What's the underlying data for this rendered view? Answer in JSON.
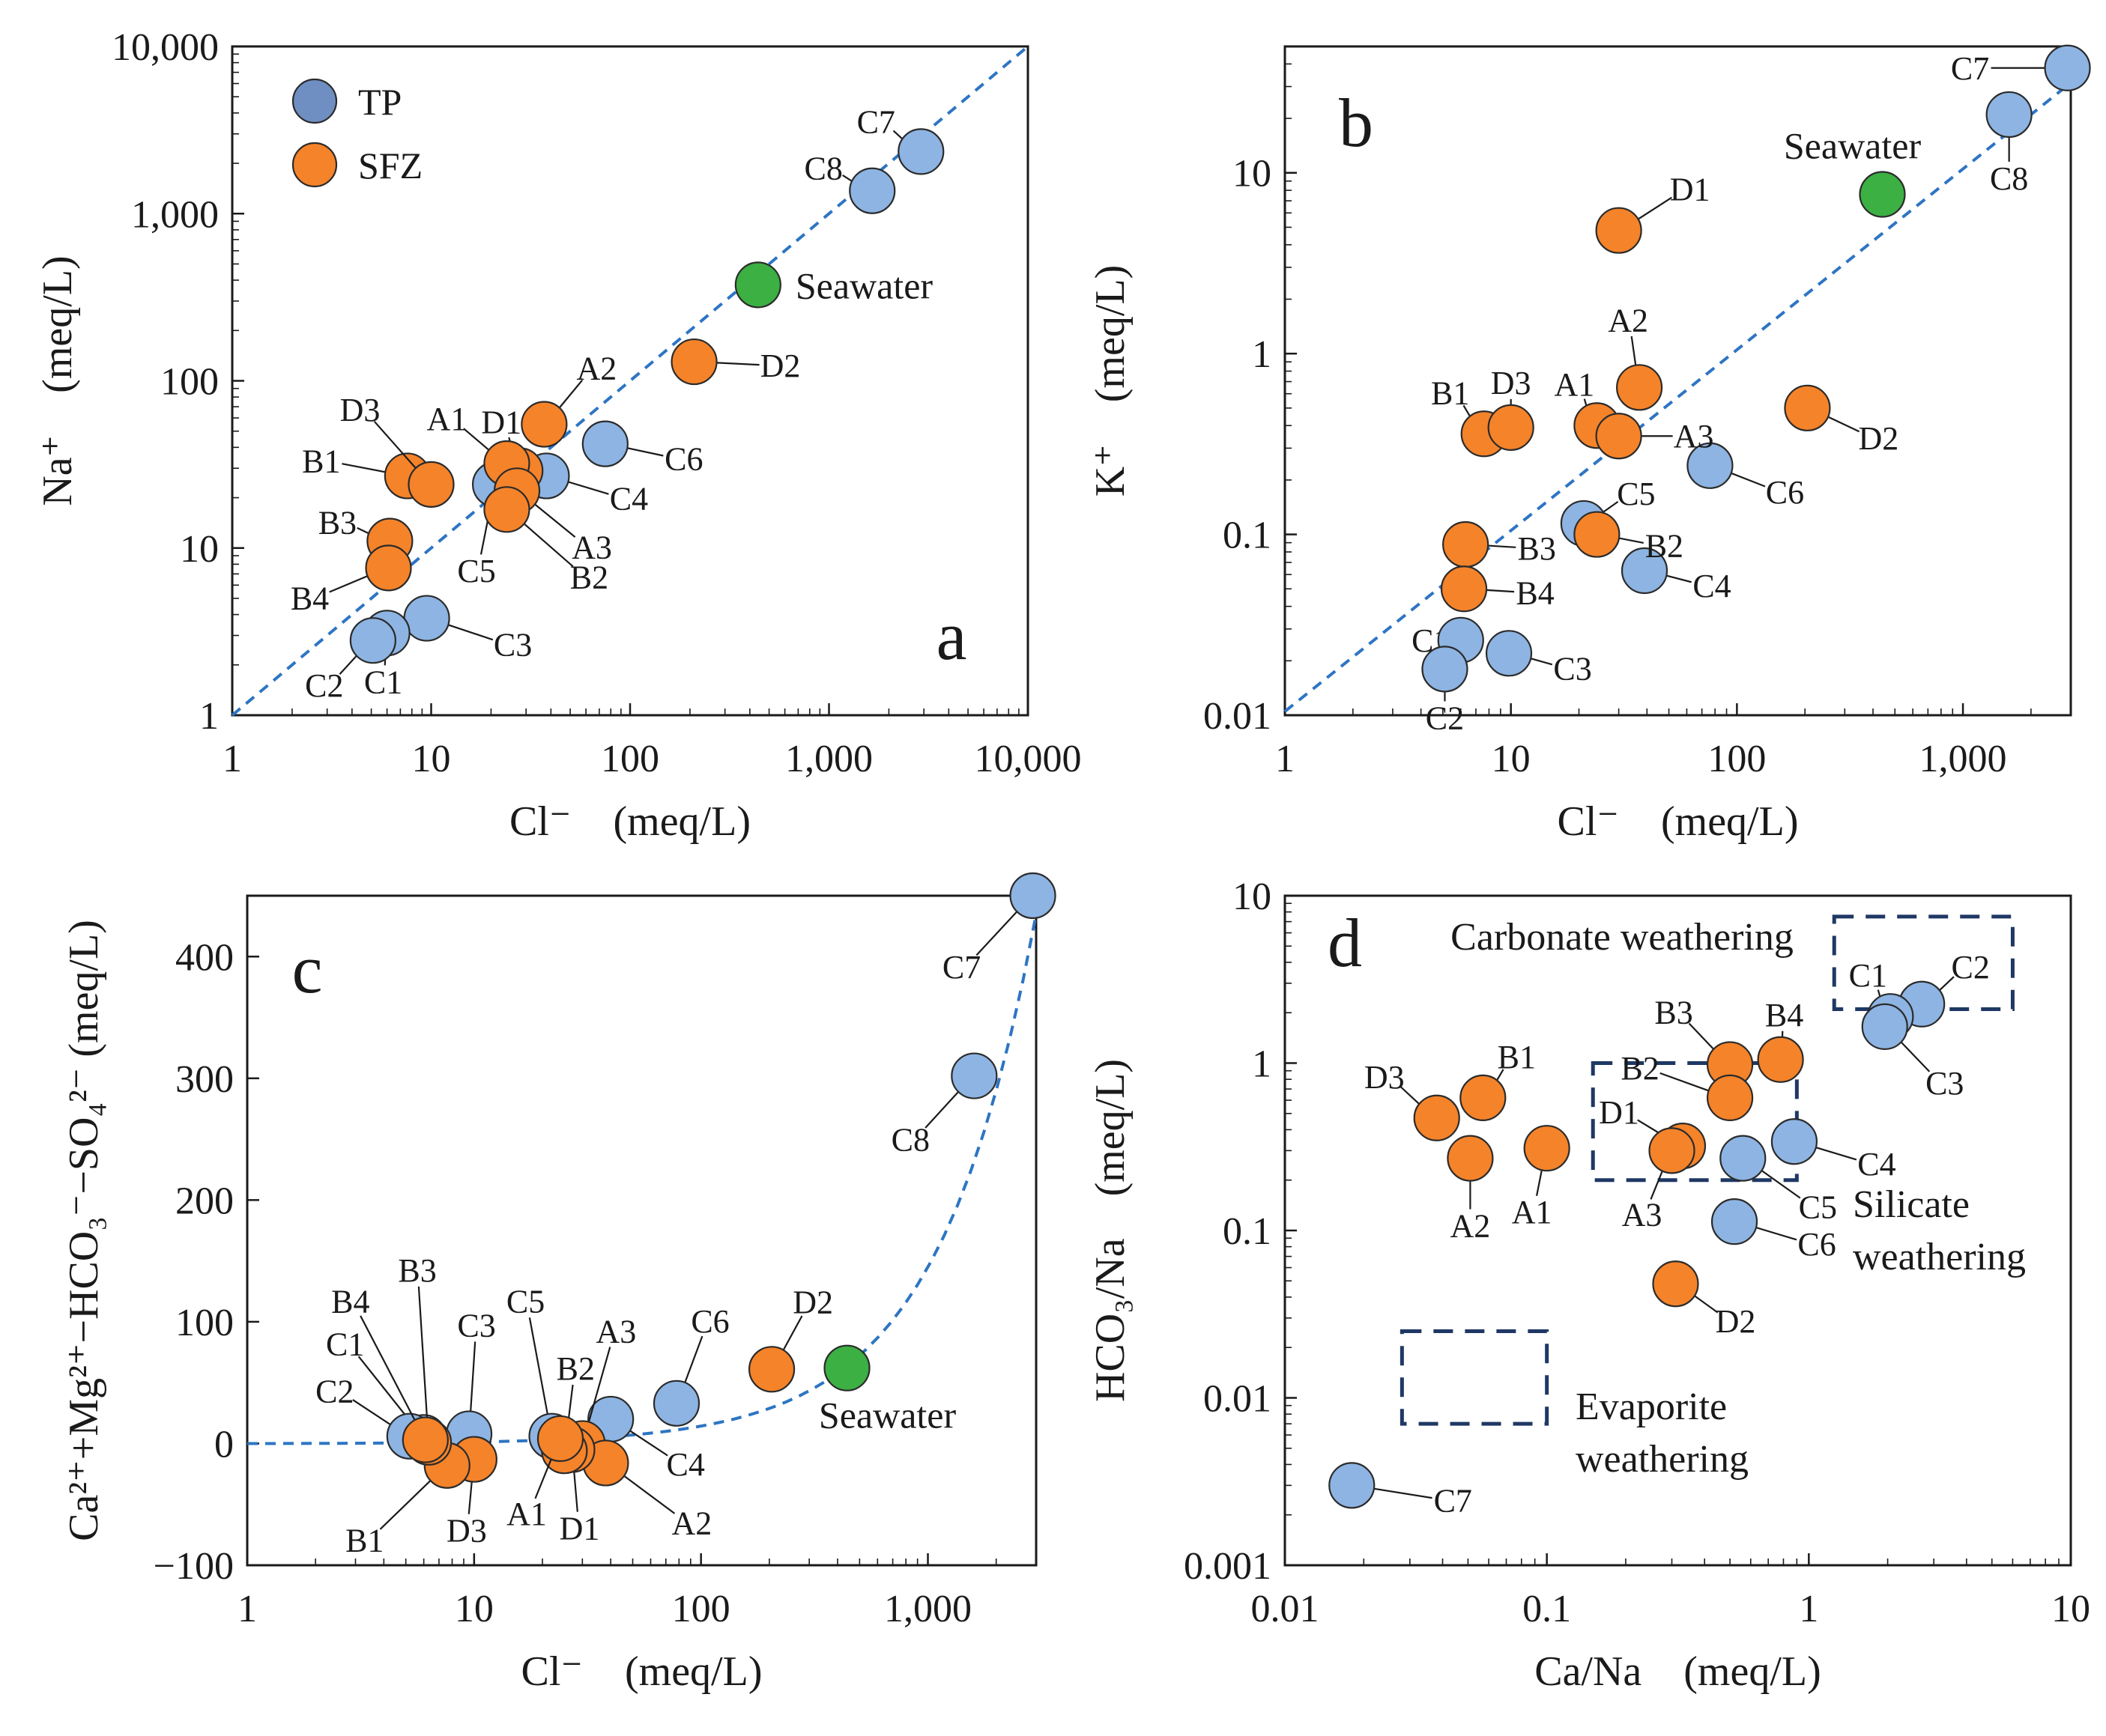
{
  "colors": {
    "TP": "#8db4e2",
    "SFZ": "#f5832a",
    "Seawater": "#3cb043",
    "trend": "#2e75c3",
    "box": "#1f3864"
  },
  "legend": [
    {
      "label": "TP",
      "color": "#6f8ec2"
    },
    {
      "label": "SFZ",
      "color": "#f5832a"
    }
  ],
  "chart_data": [
    {
      "panel": "a",
      "type": "scatter",
      "xlabel": "Cl⁻ (meq/L)",
      "ylabel": "Na⁺ (meq/L)",
      "xscale": "log",
      "yscale": "log",
      "xlim": [
        1,
        10000
      ],
      "ylim": [
        1,
        10000
      ],
      "xticks": [
        [
          1,
          "1"
        ],
        [
          10,
          "10"
        ],
        [
          100,
          "100"
        ],
        [
          1000,
          "1,000"
        ],
        [
          10000,
          "10,000"
        ]
      ],
      "yticks": [
        [
          1,
          "1"
        ],
        [
          10,
          "10"
        ],
        [
          100,
          "100"
        ],
        [
          1000,
          "1,000"
        ],
        [
          10000,
          "10,000"
        ]
      ],
      "trendline": "y = x",
      "seawater_label": "Seawater",
      "points": [
        {
          "id": "C7",
          "g": "TP",
          "x": 2900,
          "y": 2350
        },
        {
          "id": "C8",
          "g": "TP",
          "x": 1650,
          "y": 1370
        },
        {
          "id": "Seawater",
          "g": "Seawater",
          "x": 440,
          "y": 375
        },
        {
          "id": "D2",
          "g": "SFZ",
          "x": 210,
          "y": 130
        },
        {
          "id": "C6",
          "g": "TP",
          "x": 75,
          "y": 42
        },
        {
          "id": "A2",
          "g": "SFZ",
          "x": 37,
          "y": 55
        },
        {
          "id": "D1",
          "g": "SFZ",
          "x": 28,
          "y": 29
        },
        {
          "id": "A1",
          "g": "SFZ",
          "x": 24,
          "y": 32
        },
        {
          "id": "A3",
          "g": "SFZ",
          "x": 27,
          "y": 22
        },
        {
          "id": "B2",
          "g": "SFZ",
          "x": 24,
          "y": 17
        },
        {
          "id": "C4",
          "g": "TP",
          "x": 38,
          "y": 27
        },
        {
          "id": "C5",
          "g": "TP",
          "x": 21,
          "y": 24
        },
        {
          "id": "B1",
          "g": "SFZ",
          "x": 7.6,
          "y": 27
        },
        {
          "id": "D3",
          "g": "SFZ",
          "x": 10,
          "y": 24
        },
        {
          "id": "B3",
          "g": "SFZ",
          "x": 6.2,
          "y": 11
        },
        {
          "id": "B4",
          "g": "SFZ",
          "x": 6.1,
          "y": 7.6
        },
        {
          "id": "C3",
          "g": "TP",
          "x": 9.5,
          "y": 3.8
        },
        {
          "id": "C1",
          "g": "TP",
          "x": 6,
          "y": 3.1
        },
        {
          "id": "C2",
          "g": "TP",
          "x": 5.1,
          "y": 2.8
        }
      ],
      "panel_letter": "a"
    },
    {
      "panel": "b",
      "type": "scatter",
      "xlabel": "Cl⁻ (meq/L)",
      "ylabel": "K⁺ (meq/L)",
      "xscale": "log",
      "yscale": "log",
      "xlim": [
        1,
        3000
      ],
      "ylim": [
        0.01,
        50
      ],
      "xticks": [
        [
          1,
          "1"
        ],
        [
          10,
          "10"
        ],
        [
          100,
          "100"
        ],
        [
          1000,
          "1,000"
        ]
      ],
      "yticks": [
        [
          0.01,
          "0.01"
        ],
        [
          0.1,
          "0.1"
        ],
        [
          1,
          "1"
        ],
        [
          10,
          "10"
        ]
      ],
      "trendline": "y = 0.0105x",
      "seawater_label": "Seawater",
      "points": [
        {
          "id": "C7",
          "g": "TP",
          "x": 2900,
          "y": 38
        },
        {
          "id": "C8",
          "g": "TP",
          "x": 1600,
          "y": 21
        },
        {
          "id": "Seawater",
          "g": "Seawater",
          "x": 440,
          "y": 7.6
        },
        {
          "id": "D1",
          "g": "SFZ",
          "x": 30,
          "y": 4.8
        },
        {
          "id": "A2",
          "g": "SFZ",
          "x": 37,
          "y": 0.65
        },
        {
          "id": "D2",
          "g": "SFZ",
          "x": 205,
          "y": 0.5
        },
        {
          "id": "A1",
          "g": "SFZ",
          "x": 24,
          "y": 0.4
        },
        {
          "id": "A3",
          "g": "SFZ",
          "x": 30,
          "y": 0.35
        },
        {
          "id": "B1",
          "g": "SFZ",
          "x": 7.6,
          "y": 0.36
        },
        {
          "id": "D3",
          "g": "SFZ",
          "x": 10,
          "y": 0.39
        },
        {
          "id": "C6",
          "g": "TP",
          "x": 76,
          "y": 0.24
        },
        {
          "id": "C5",
          "g": "TP",
          "x": 21,
          "y": 0.115
        },
        {
          "id": "B2",
          "g": "SFZ",
          "x": 24,
          "y": 0.1
        },
        {
          "id": "B3",
          "g": "SFZ",
          "x": 6.3,
          "y": 0.088
        },
        {
          "id": "C4",
          "g": "TP",
          "x": 39,
          "y": 0.063
        },
        {
          "id": "B4",
          "g": "SFZ",
          "x": 6.2,
          "y": 0.05
        },
        {
          "id": "C1",
          "g": "TP",
          "x": 6,
          "y": 0.026
        },
        {
          "id": "C3",
          "g": "TP",
          "x": 9.8,
          "y": 0.022
        },
        {
          "id": "C2",
          "g": "TP",
          "x": 5.1,
          "y": 0.018
        }
      ],
      "panel_letter": "b"
    },
    {
      "panel": "c",
      "type": "scatter",
      "xlabel": "Cl⁻ (meq/L)",
      "ylabel": "Ca²⁺+Mg²⁺−HCO₃⁻−SO₄²⁻ (meq/L)",
      "xscale": "log",
      "yscale": "linear",
      "xlim": [
        1,
        3000
      ],
      "ylim": [
        -100,
        450
      ],
      "xticks": [
        [
          1,
          "1"
        ],
        [
          10,
          "10"
        ],
        [
          100,
          "100"
        ],
        [
          1000,
          "1,000"
        ]
      ],
      "yticks": [
        [
          -100,
          "−100"
        ],
        [
          0,
          "0"
        ],
        [
          100,
          "100"
        ],
        [
          200,
          "200"
        ],
        [
          300,
          "300"
        ],
        [
          400,
          "400"
        ]
      ],
      "trendline": "y = 0.145x",
      "seawater_label": "Seawater",
      "points": [
        {
          "id": "C7",
          "g": "TP",
          "x": 2900,
          "y": 450
        },
        {
          "id": "C8",
          "g": "TP",
          "x": 1600,
          "y": 302
        },
        {
          "id": "Seawater",
          "g": "Seawater",
          "x": 440,
          "y": 62
        },
        {
          "id": "D2",
          "g": "SFZ",
          "x": 205,
          "y": 61
        },
        {
          "id": "C6",
          "g": "TP",
          "x": 78,
          "y": 33
        },
        {
          "id": "C4",
          "g": "TP",
          "x": 40,
          "y": 20
        },
        {
          "id": "A3",
          "g": "SFZ",
          "x": 30,
          "y": 0
        },
        {
          "id": "A2",
          "g": "SFZ",
          "x": 38,
          "y": -16
        },
        {
          "id": "D1",
          "g": "SFZ",
          "x": 27,
          "y": -5
        },
        {
          "id": "B2",
          "g": "SFZ",
          "x": 25,
          "y": -6
        },
        {
          "id": "A1",
          "g": "SFZ",
          "x": 24,
          "y": 4
        },
        {
          "id": "C5",
          "g": "TP",
          "x": 22,
          "y": 6
        },
        {
          "id": "C3",
          "g": "TP",
          "x": 9.5,
          "y": 8
        },
        {
          "id": "D3",
          "g": "SFZ",
          "x": 10,
          "y": -13
        },
        {
          "id": "B1",
          "g": "SFZ",
          "x": 7.6,
          "y": -18
        },
        {
          "id": "B3",
          "g": "SFZ",
          "x": 6.3,
          "y": 1
        },
        {
          "id": "B4",
          "g": "SFZ",
          "x": 6.1,
          "y": 3
        },
        {
          "id": "C1",
          "g": "TP",
          "x": 6,
          "y": 5
        },
        {
          "id": "C2",
          "g": "TP",
          "x": 5.2,
          "y": 6
        }
      ],
      "panel_letter": "c"
    },
    {
      "panel": "d",
      "type": "scatter",
      "xlabel": "Ca/Na (meq/L)",
      "ylabel": "HCO₃/Na (meq/L)",
      "xscale": "log",
      "yscale": "log",
      "xlim": [
        0.01,
        10
      ],
      "ylim": [
        0.001,
        10
      ],
      "xticks": [
        [
          0.01,
          "0.01"
        ],
        [
          0.1,
          "0.1"
        ],
        [
          1,
          "1"
        ],
        [
          10,
          "10"
        ]
      ],
      "yticks": [
        [
          0.001,
          "0.001"
        ],
        [
          0.01,
          "0.01"
        ],
        [
          0.1,
          "0.1"
        ],
        [
          1,
          "1"
        ],
        [
          10,
          "10"
        ]
      ],
      "regions": [
        {
          "name": "Carbonate weathering",
          "x": [
            1.25,
            6
          ],
          "y": [
            2.1,
            7.5
          ]
        },
        {
          "name": "Silicate weathering",
          "x": [
            0.15,
            0.9
          ],
          "y": [
            0.2,
            1.0
          ]
        },
        {
          "name": "Evaporite weathering",
          "x": [
            0.028,
            0.1
          ],
          "y": [
            0.007,
            0.025
          ]
        }
      ],
      "region_labels": {
        "carbonate": "Carbonate weathering",
        "silicate_1": "Silicate",
        "silicate_2": "weathering",
        "evaporite_1": "Evaporite",
        "evaporite_2": "weathering"
      },
      "points": [
        {
          "id": "C2",
          "g": "TP",
          "x": 2.7,
          "y": 2.25
        },
        {
          "id": "C1",
          "g": "TP",
          "x": 2.05,
          "y": 1.9
        },
        {
          "id": "C3",
          "g": "TP",
          "x": 1.95,
          "y": 1.65
        },
        {
          "id": "B4",
          "g": "SFZ",
          "x": 0.78,
          "y": 1.05
        },
        {
          "id": "B3",
          "g": "SFZ",
          "x": 0.5,
          "y": 0.98
        },
        {
          "id": "B2",
          "g": "SFZ",
          "x": 0.5,
          "y": 0.62
        },
        {
          "id": "D1",
          "g": "SFZ",
          "x": 0.33,
          "y": 0.32
        },
        {
          "id": "A3",
          "g": "SFZ",
          "x": 0.3,
          "y": 0.3
        },
        {
          "id": "C4",
          "g": "TP",
          "x": 0.88,
          "y": 0.34
        },
        {
          "id": "C5",
          "g": "TP",
          "x": 0.56,
          "y": 0.27
        },
        {
          "id": "C6",
          "g": "TP",
          "x": 0.52,
          "y": 0.113
        },
        {
          "id": "D2",
          "g": "SFZ",
          "x": 0.31,
          "y": 0.048
        },
        {
          "id": "B1",
          "g": "SFZ",
          "x": 0.057,
          "y": 0.62
        },
        {
          "id": "D3",
          "g": "SFZ",
          "x": 0.038,
          "y": 0.47
        },
        {
          "id": "A2",
          "g": "SFZ",
          "x": 0.051,
          "y": 0.27
        },
        {
          "id": "A1",
          "g": "SFZ",
          "x": 0.1,
          "y": 0.31
        },
        {
          "id": "C7",
          "g": "TP",
          "x": 0.018,
          "y": 0.003
        }
      ],
      "panel_letter": "d"
    }
  ]
}
